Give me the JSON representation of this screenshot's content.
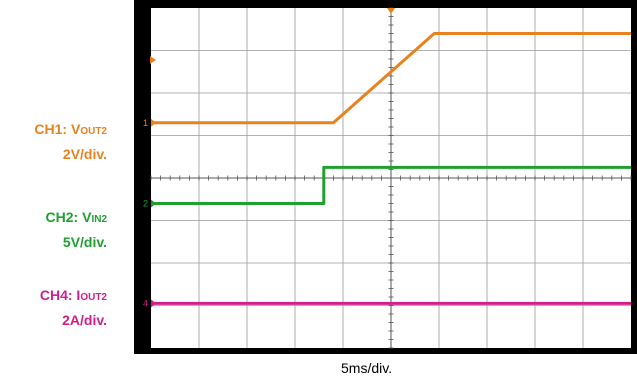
{
  "channels": [
    {
      "id": "CH1",
      "prefix": "CH1: V",
      "sub": "OUT2",
      "scale": "2V/div.",
      "color": "#e8821e",
      "marker": "1"
    },
    {
      "id": "CH2",
      "prefix": "CH2: V",
      "sub": "IN2",
      "scale": "5V/div.",
      "color": "#20a030",
      "marker": "2"
    },
    {
      "id": "CH4",
      "prefix": "CH4: I",
      "sub": "OUT2",
      "scale": "2A/div.",
      "color": "#d01e8c",
      "marker": "4"
    }
  ],
  "timebase": "5ms/div.",
  "chart_data": {
    "type": "line",
    "x_unit": "div",
    "xlim": [
      0,
      10
    ],
    "ylim": [
      0,
      8
    ],
    "divisions": {
      "x": 10,
      "y": 8
    },
    "grid": true,
    "series": [
      {
        "channel": "CH1",
        "x": [
          0,
          3.8,
          5.9,
          10
        ],
        "y": [
          5.3,
          5.3,
          7.4,
          7.4
        ]
      },
      {
        "channel": "CH2",
        "x": [
          0,
          3.6,
          3.6,
          10
        ],
        "y": [
          3.4,
          3.4,
          4.25,
          4.25
        ]
      },
      {
        "channel": "CH4",
        "x": [
          0,
          10
        ],
        "y": [
          1.05,
          1.05
        ]
      }
    ],
    "trigger_position_div": 5
  }
}
